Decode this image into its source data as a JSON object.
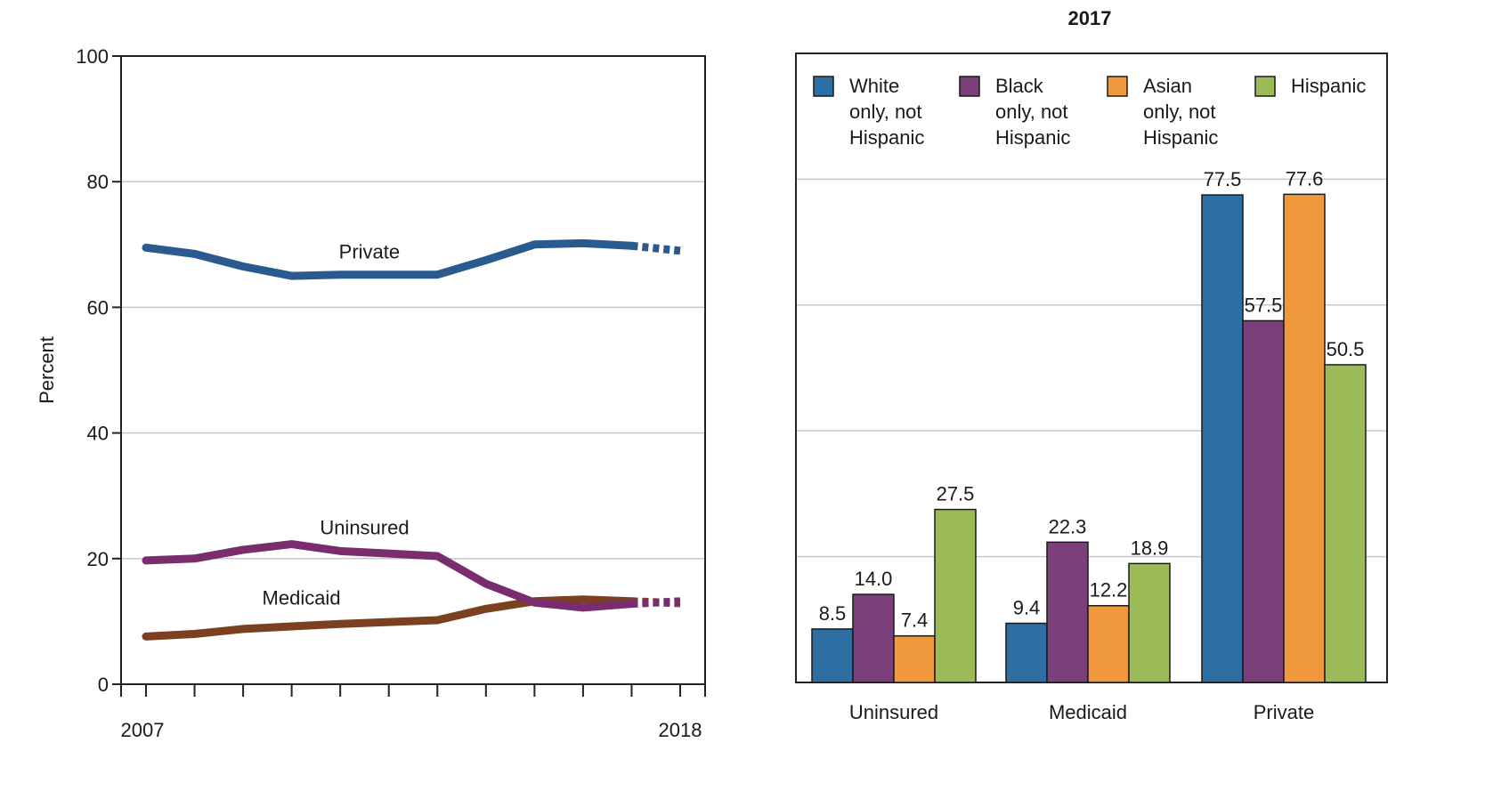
{
  "chart_data": [
    {
      "type": "line",
      "title": "",
      "xlabel": "",
      "ylabel": "Percent",
      "x": [
        2007,
        2008,
        2009,
        2010,
        2011,
        2012,
        2013,
        2014,
        2015,
        2016,
        2017,
        2018
      ],
      "x_tick_labels": [
        "2007",
        "2018"
      ],
      "ylim": [
        0,
        100
      ],
      "y_ticks": [
        0,
        20,
        40,
        60,
        80,
        100
      ],
      "y_tick_labels": [
        "0",
        "20",
        "40",
        "60",
        "80",
        "100"
      ],
      "grid": true,
      "last_segment_style": "dashed",
      "series": [
        {
          "name": "Private",
          "color": "#2a5a8e",
          "values": [
            69.5,
            68.5,
            66.5,
            65.0,
            65.2,
            65.2,
            65.2,
            67.5,
            70.0,
            70.2,
            69.8,
            69.0
          ]
        },
        {
          "name": "Uninsured",
          "color": "#7a2d6e",
          "values": [
            19.7,
            20.0,
            21.4,
            22.3,
            21.2,
            20.8,
            20.4,
            16.0,
            13.0,
            12.2,
            12.8,
            13.2
          ]
        },
        {
          "name": "Medicaid",
          "color": "#7a4020",
          "values": [
            7.6,
            8.0,
            8.8,
            9.2,
            9.6,
            9.9,
            10.2,
            12.0,
            13.2,
            13.5,
            13.2,
            12.9
          ]
        }
      ]
    },
    {
      "type": "bar",
      "title": "2017",
      "xlabel": "",
      "ylabel": "",
      "categories": [
        "Uninsured",
        "Medicaid",
        "Private"
      ],
      "ylim": [
        0,
        100
      ],
      "grid": true,
      "legend_position": "top",
      "series": [
        {
          "name": "White only, not Hispanic",
          "name_lines": [
            "White",
            "only, not",
            "Hispanic"
          ],
          "color": "#2e6fa3",
          "values": [
            8.5,
            9.4,
            77.5
          ],
          "labels": [
            "8.5",
            "9.4",
            "77.5"
          ]
        },
        {
          "name": "Black only, not Hispanic",
          "name_lines": [
            "Black",
            "only, not",
            "Hispanic"
          ],
          "color": "#7b3f7a",
          "values": [
            14.0,
            22.3,
            57.5
          ],
          "labels": [
            "14.0",
            "22.3",
            "57.5"
          ]
        },
        {
          "name": "Asian only, not Hispanic",
          "name_lines": [
            "Asian",
            "only, not",
            "Hispanic"
          ],
          "color": "#f0983c",
          "values": [
            7.4,
            12.2,
            77.6
          ],
          "labels": [
            "7.4",
            "12.2",
            "77.6"
          ]
        },
        {
          "name": "Hispanic",
          "name_lines": [
            "Hispanic"
          ],
          "color": "#9bbb59",
          "values": [
            27.5,
            18.9,
            50.5
          ],
          "labels": [
            "27.5",
            "18.9",
            "50.5"
          ]
        }
      ]
    }
  ]
}
